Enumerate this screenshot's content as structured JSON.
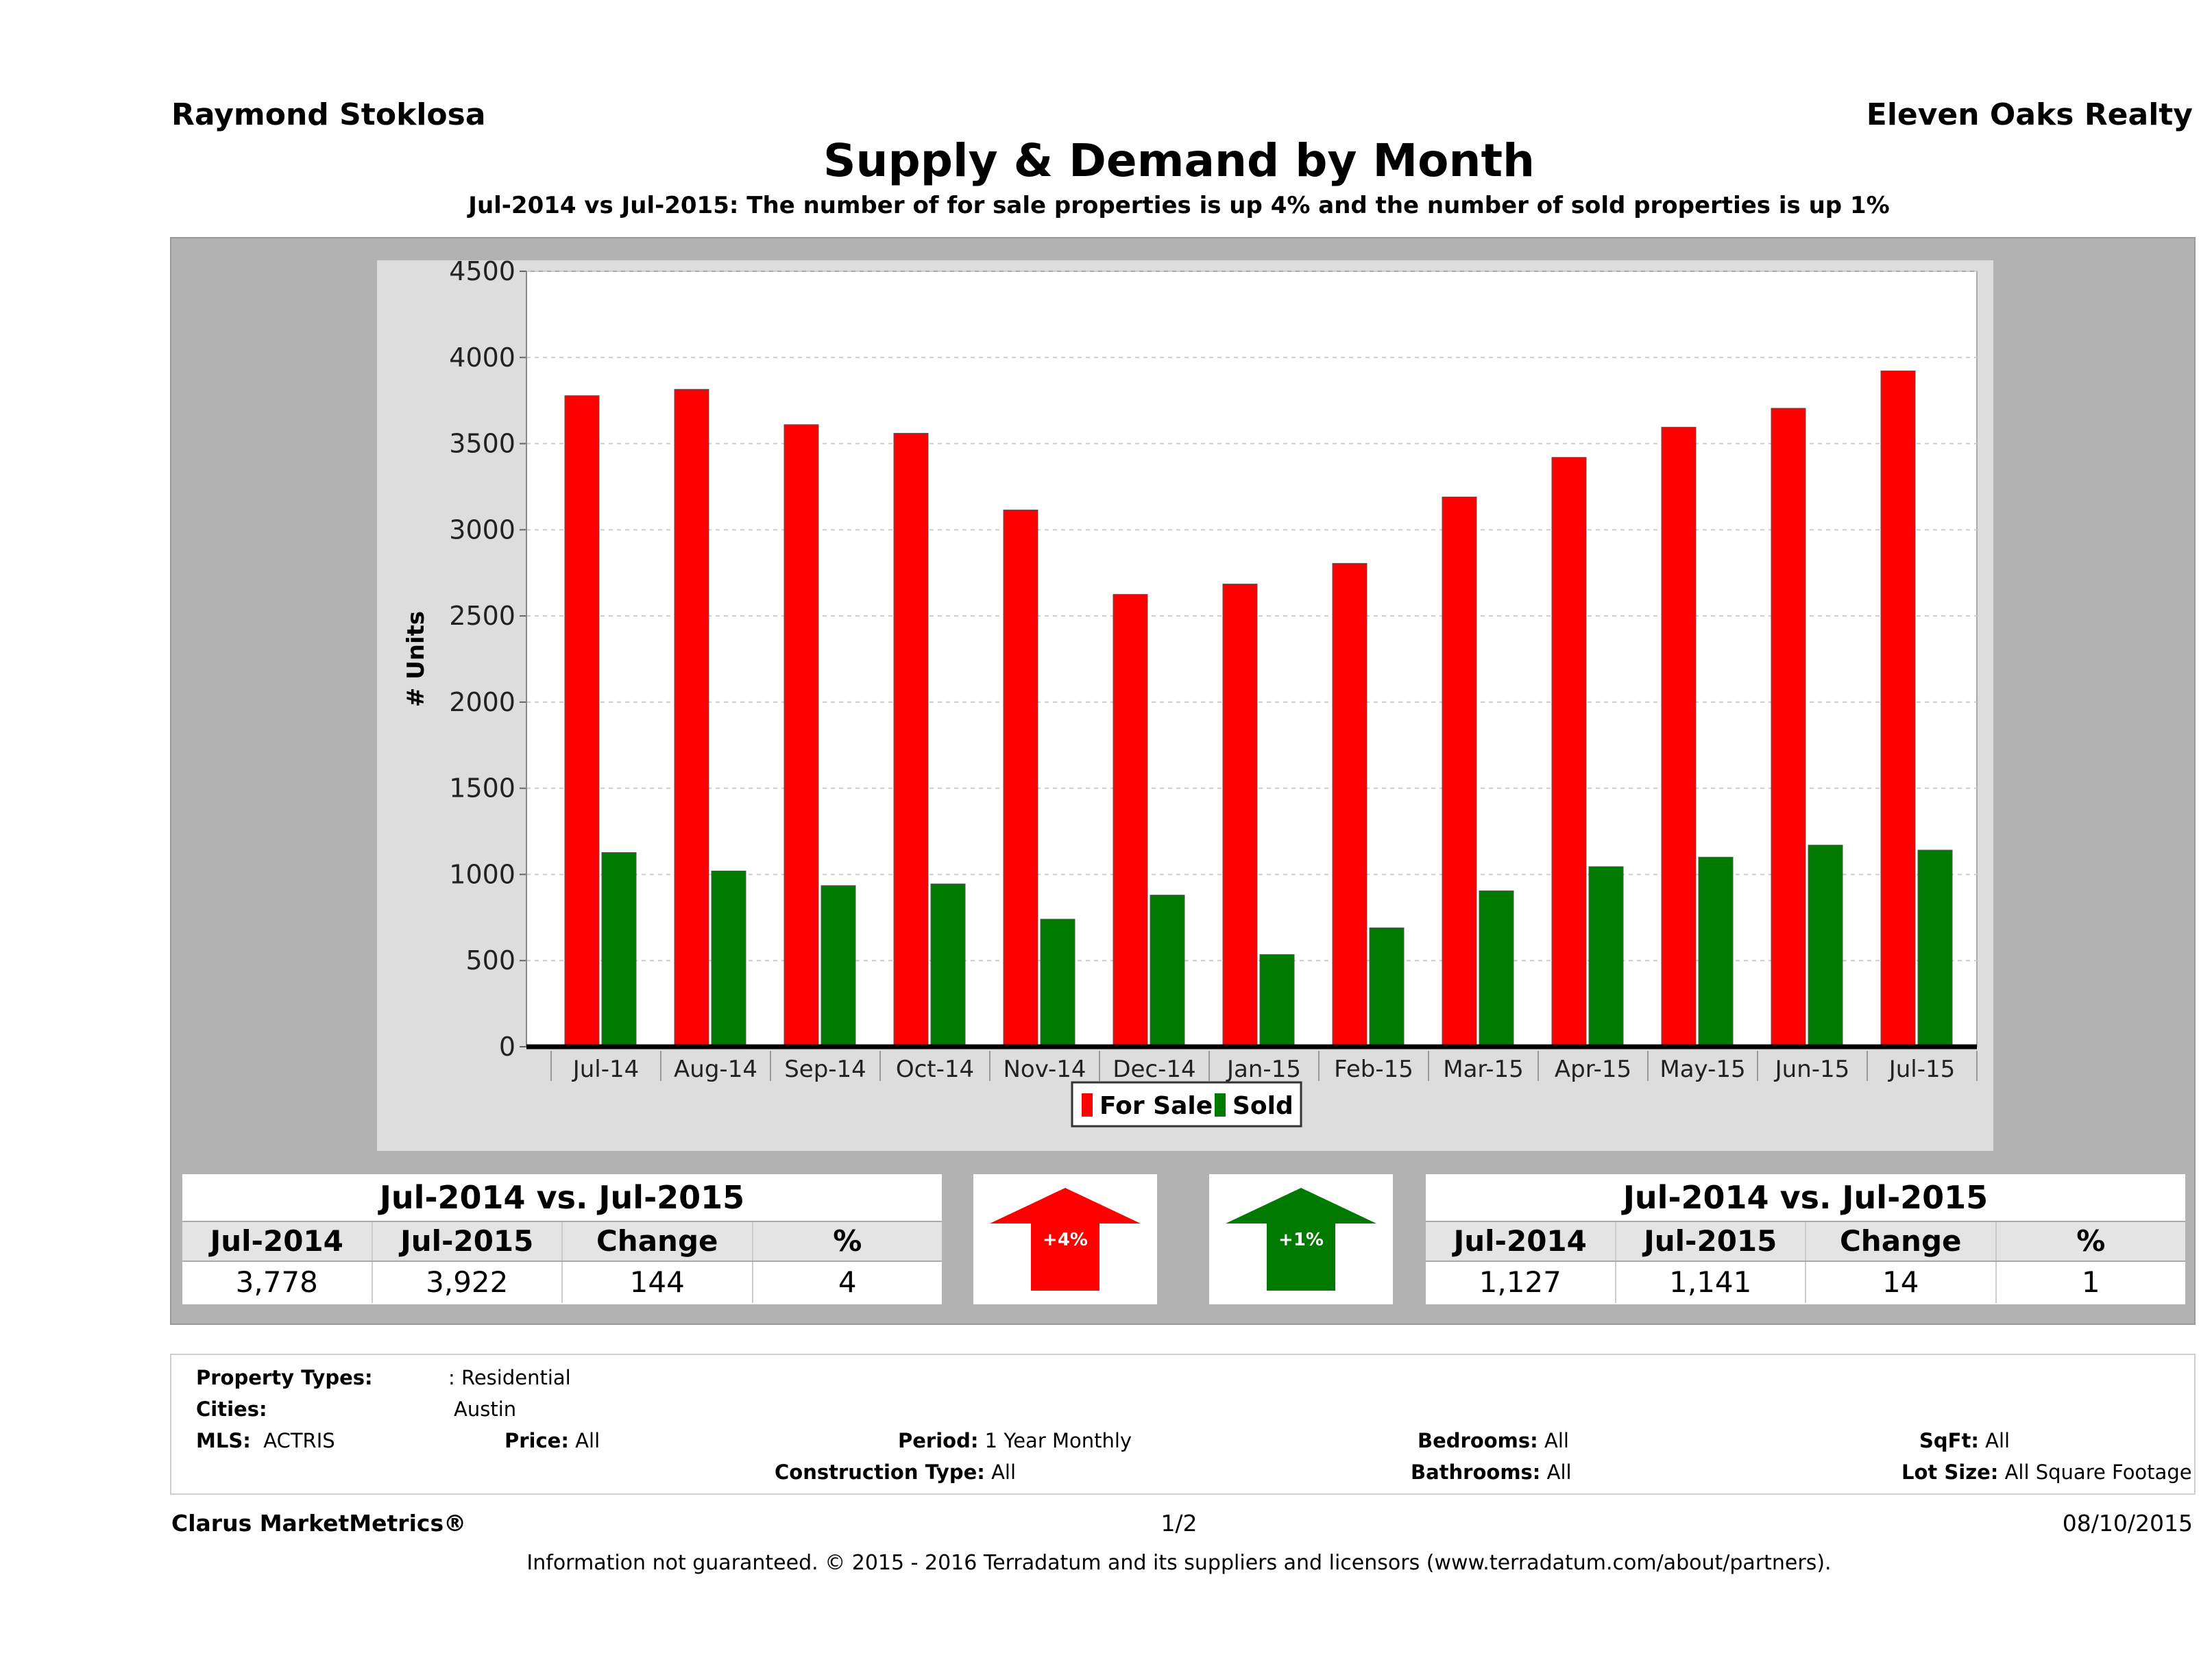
{
  "header": {
    "agent": "Raymond Stoklosa",
    "brokerage": "Eleven Oaks Realty",
    "title": "Supply & Demand by Month",
    "subtitle": "Jul-2014 vs Jul-2015: The number of for sale properties is up 4% and the number of sold properties is up 1%"
  },
  "chart_data": {
    "type": "bar",
    "ylabel": "# Units",
    "xlabel": "",
    "ylim": [
      0,
      4500
    ],
    "yticks": [
      "0",
      "500",
      "1000",
      "1500",
      "2000",
      "2500",
      "3000",
      "3500",
      "4000",
      "4500"
    ],
    "grid": true,
    "legend_position": "bottom-center",
    "categories": [
      "Jul-14",
      "Aug-14",
      "Sep-14",
      "Oct-14",
      "Nov-14",
      "Dec-14",
      "Jan-15",
      "Feb-15",
      "Mar-15",
      "Apr-15",
      "May-15",
      "Jun-15",
      "Jul-15"
    ],
    "series": [
      {
        "name": "For Sale",
        "color": "#ff0000",
        "values": [
          3778,
          3815,
          3610,
          3560,
          3115,
          2625,
          2685,
          2805,
          3190,
          3420,
          3595,
          3705,
          3922
        ]
      },
      {
        "name": "Sold",
        "color": "#007a00",
        "values": [
          1127,
          1020,
          935,
          945,
          740,
          880,
          535,
          690,
          905,
          1045,
          1100,
          1170,
          1141
        ]
      }
    ]
  },
  "for_sale_stats": {
    "title": "Jul-2014 vs. Jul-2015",
    "headers": [
      "Jul-2014",
      "Jul-2015",
      "Change",
      "%"
    ],
    "values": [
      "3,778",
      "3,922",
      "144",
      "4"
    ],
    "arrow_label": "+4%",
    "arrow_color": "#ff0000"
  },
  "sold_stats": {
    "title": "Jul-2014 vs. Jul-2015",
    "headers": [
      "Jul-2014",
      "Jul-2015",
      "Change",
      "%"
    ],
    "values": [
      "1,127",
      "1,141",
      "14",
      "1"
    ],
    "arrow_label": "+1%",
    "arrow_color": "#007a00"
  },
  "criteria": {
    "property_types_label": "Property Types:",
    "property_types_value": ": Residential",
    "cities_label": "Cities:",
    "cities_value": "Austin",
    "mls_label": "MLS:",
    "mls_value": "ACTRIS",
    "price_label": "Price:",
    "price_value": "All",
    "period_label": "Period:",
    "period_value": "1 Year Monthly",
    "construction_label": "Construction Type:",
    "construction_value": "All",
    "bedrooms_label": "Bedrooms:",
    "bedrooms_value": "All",
    "bathrooms_label": "Bathrooms:",
    "bathrooms_value": "All",
    "sqft_label": "SqFt:",
    "sqft_value": "All",
    "lot_label": "Lot Size:",
    "lot_value": "All Square Footage"
  },
  "footer": {
    "product": "Clarus MarketMetrics®",
    "page": "1/2",
    "date": "08/10/2015",
    "disclaimer": "Information not guaranteed. © 2015 - 2016 Terradatum and its suppliers and licensors (www.terradatum.com/about/partners)."
  }
}
